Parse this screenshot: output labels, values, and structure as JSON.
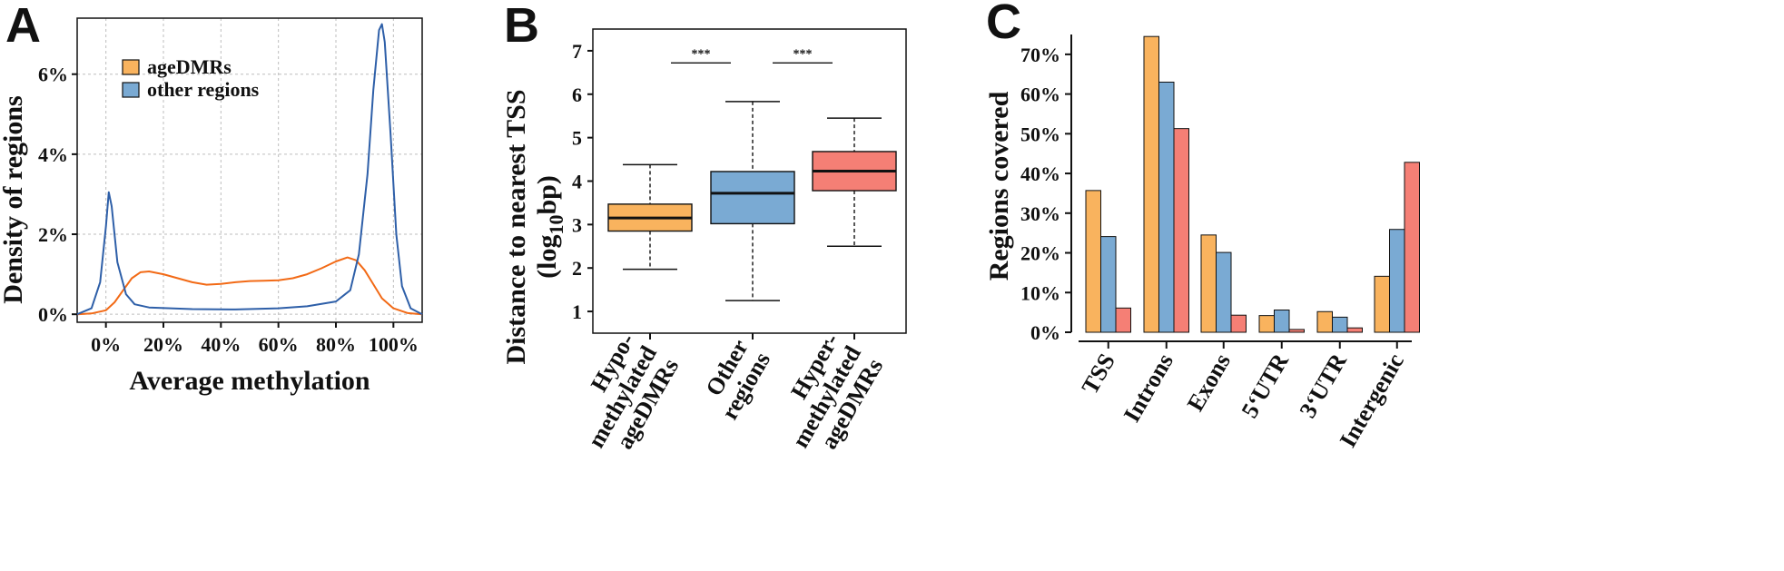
{
  "panels": {
    "a": {
      "letter": "A"
    },
    "b": {
      "letter": "B"
    },
    "c": {
      "letter": "C"
    }
  },
  "chart_data": [
    {
      "type": "line",
      "panel": "A",
      "xlabel": "Average methylation",
      "ylabel": "Density of regions",
      "x_ticks": [
        "0%",
        "20%",
        "40%",
        "60%",
        "80%",
        "100%"
      ],
      "y_ticks": [
        "0%",
        "2%",
        "4%",
        "6%"
      ],
      "xlim": [
        -0.1,
        1.1
      ],
      "ylim": [
        -0.2,
        7.4
      ],
      "grid": true,
      "legend": "top-left",
      "series": [
        {
          "name": "ageDMRs",
          "color": "#f26a16",
          "points": [
            [
              -0.1,
              0.0
            ],
            [
              -0.05,
              0.02
            ],
            [
              0.0,
              0.1
            ],
            [
              0.03,
              0.3
            ],
            [
              0.06,
              0.6
            ],
            [
              0.09,
              0.9
            ],
            [
              0.12,
              1.05
            ],
            [
              0.15,
              1.07
            ],
            [
              0.2,
              1.0
            ],
            [
              0.25,
              0.9
            ],
            [
              0.3,
              0.8
            ],
            [
              0.35,
              0.74
            ],
            [
              0.4,
              0.76
            ],
            [
              0.45,
              0.8
            ],
            [
              0.5,
              0.83
            ],
            [
              0.55,
              0.84
            ],
            [
              0.6,
              0.85
            ],
            [
              0.65,
              0.9
            ],
            [
              0.7,
              1.0
            ],
            [
              0.75,
              1.15
            ],
            [
              0.8,
              1.32
            ],
            [
              0.84,
              1.42
            ],
            [
              0.87,
              1.35
            ],
            [
              0.9,
              1.1
            ],
            [
              0.93,
              0.75
            ],
            [
              0.96,
              0.4
            ],
            [
              1.0,
              0.15
            ],
            [
              1.05,
              0.03
            ],
            [
              1.1,
              0.0
            ]
          ]
        },
        {
          "name": "other regions",
          "color": "#2e5fa8",
          "points": [
            [
              -0.1,
              0.0
            ],
            [
              -0.05,
              0.15
            ],
            [
              -0.02,
              0.8
            ],
            [
              0.0,
              2.2
            ],
            [
              0.01,
              3.05
            ],
            [
              0.02,
              2.7
            ],
            [
              0.04,
              1.3
            ],
            [
              0.07,
              0.5
            ],
            [
              0.1,
              0.25
            ],
            [
              0.15,
              0.17
            ],
            [
              0.3,
              0.13
            ],
            [
              0.45,
              0.12
            ],
            [
              0.6,
              0.15
            ],
            [
              0.7,
              0.2
            ],
            [
              0.8,
              0.32
            ],
            [
              0.85,
              0.6
            ],
            [
              0.88,
              1.5
            ],
            [
              0.91,
              3.5
            ],
            [
              0.93,
              5.6
            ],
            [
              0.95,
              7.1
            ],
            [
              0.96,
              7.25
            ],
            [
              0.97,
              6.8
            ],
            [
              0.99,
              4.5
            ],
            [
              1.01,
              2.0
            ],
            [
              1.03,
              0.7
            ],
            [
              1.06,
              0.15
            ],
            [
              1.1,
              0.0
            ]
          ]
        }
      ]
    },
    {
      "type": "box",
      "panel": "B",
      "ylabel_line1": "Distance to nearest TSS",
      "ylabel_line2_prefix": "(log",
      "ylabel_line2_sub": "10",
      "ylabel_line2_suffix": "bp)",
      "y_ticks": [
        "1",
        "2",
        "3",
        "4",
        "5",
        "6",
        "7"
      ],
      "ylim": [
        0.5,
        7.5
      ],
      "categories": [
        {
          "lines": [
            "Hypo-",
            "methylated",
            "ageDMRs"
          ],
          "color": "#f9b35e",
          "min": 1.97,
          "q1": 2.85,
          "median": 3.15,
          "q3": 3.47,
          "max": 4.38
        },
        {
          "lines": [
            "Other",
            "regions"
          ],
          "color": "#7aaad3",
          "min": 1.25,
          "q1": 3.02,
          "median": 3.72,
          "q3": 4.22,
          "max": 5.83
        },
        {
          "lines": [
            "Hyper-",
            "methylated",
            "ageDMRs"
          ],
          "color": "#f57f75",
          "min": 2.5,
          "q1": 3.78,
          "median": 4.23,
          "q3": 4.68,
          "max": 5.45
        }
      ],
      "significance": [
        {
          "between": [
            0,
            1
          ],
          "label": "***"
        },
        {
          "between": [
            1,
            2
          ],
          "label": "***"
        }
      ]
    },
    {
      "type": "bar",
      "panel": "C",
      "ylabel": "Regions covered",
      "categories": [
        "TSS",
        "Introns",
        "Exons",
        "5‘UTR",
        "3‘UTR",
        "Intergenic"
      ],
      "y_ticks": [
        "0%",
        "10%",
        "20%",
        "30%",
        "40%",
        "50%",
        "60%",
        "70%"
      ],
      "ylim": [
        0,
        75
      ],
      "series": [
        {
          "color": "#f9b35e",
          "values": [
            35.7,
            74.5,
            24.5,
            4.2,
            5.2,
            14.1
          ]
        },
        {
          "color": "#7aaad3",
          "values": [
            24.1,
            63.0,
            20.1,
            5.6,
            3.8,
            25.9
          ]
        },
        {
          "color": "#f57f75",
          "values": [
            6.1,
            51.3,
            4.3,
            0.7,
            1.1,
            42.8
          ]
        }
      ]
    }
  ]
}
